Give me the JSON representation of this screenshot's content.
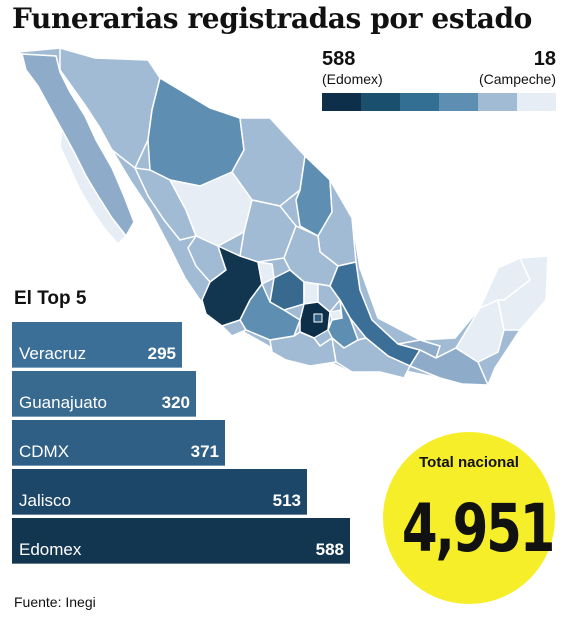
{
  "title": "Funerarias registradas por estado",
  "legend": {
    "max_value": "588",
    "max_label": "(Edomex)",
    "min_value": "18",
    "min_label": "(Campeche)",
    "scale_colors": [
      "#0e2f4a",
      "#1b4f6e",
      "#336f92",
      "#5e8fb3",
      "#a2bbd5",
      "#e6edf5"
    ]
  },
  "map": {
    "country": "México",
    "shaded_states_darkest": [
      "Edomex",
      "Jalisco"
    ]
  },
  "top5": {
    "title": "El Top 5",
    "items": [
      {
        "name": "Veracruz",
        "value": 295,
        "color": "#3c6f97"
      },
      {
        "name": "Guanajuato",
        "value": 320,
        "color": "#38698f"
      },
      {
        "name": "CDMX",
        "value": 371,
        "color": "#2f5f85"
      },
      {
        "name": "Jalisco",
        "value": 513,
        "color": "#1c4768"
      },
      {
        "name": "Edomex",
        "value": 588,
        "color": "#133650"
      }
    ]
  },
  "badge": {
    "label": "Total nacional",
    "total": "4,951",
    "color": "#f7ee2a"
  },
  "source": "Fuente: Inegi"
}
